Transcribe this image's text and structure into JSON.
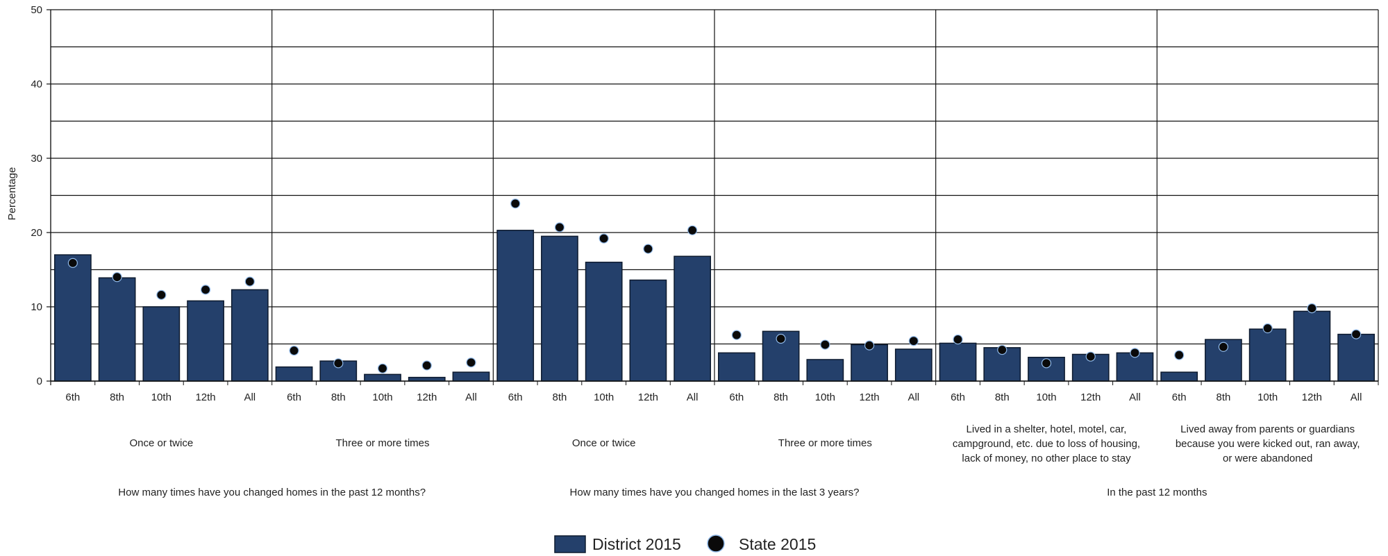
{
  "chart_data": {
    "type": "bar",
    "ylabel": "Percentage",
    "ylim": [
      0,
      50
    ],
    "yticks": [
      "0",
      "10",
      "20",
      "30",
      "40",
      "50"
    ],
    "grid": true,
    "legend_position": "bottom-center",
    "colors": {
      "bar": "#24406b",
      "bar_stroke": "#0d1a2e",
      "dot": "#0a0a0a",
      "dot_stroke": "#8fb8e8",
      "grid": "#111111"
    },
    "categories": [
      "6th",
      "8th",
      "10th",
      "12th",
      "All"
    ],
    "series": [
      {
        "name": "District 2015",
        "kind": "bar"
      },
      {
        "name": "State 2015",
        "kind": "dot"
      }
    ],
    "groups": [
      {
        "label": [
          "Once or twice"
        ],
        "district": [
          17.0,
          13.9,
          10.0,
          10.8,
          12.3
        ],
        "state": [
          15.9,
          14.0,
          11.6,
          12.3,
          13.4
        ]
      },
      {
        "label": [
          "Three or more times"
        ],
        "district": [
          1.9,
          2.7,
          0.9,
          0.5,
          1.2
        ],
        "state": [
          4.1,
          2.4,
          1.7,
          2.1,
          2.5
        ]
      },
      {
        "label": [
          "Once or twice"
        ],
        "district": [
          20.3,
          19.5,
          16.0,
          13.6,
          16.8
        ],
        "state": [
          23.9,
          20.7,
          19.2,
          17.8,
          20.3
        ]
      },
      {
        "label": [
          "Three or more times"
        ],
        "district": [
          3.8,
          6.7,
          2.9,
          4.9,
          4.3
        ],
        "state": [
          6.2,
          5.7,
          4.9,
          4.8,
          5.4
        ]
      },
      {
        "label": [
          "Lived in a shelter, hotel, motel, car,",
          "campground, etc. due to loss of housing,",
          "lack of money, no other place to stay"
        ],
        "district": [
          5.1,
          4.5,
          3.2,
          3.6,
          3.8
        ],
        "state": [
          5.6,
          4.2,
          2.4,
          3.3,
          3.8
        ]
      },
      {
        "label": [
          "Lived away from parents or guardians",
          "because you were kicked out, ran away,",
          "or were abandoned"
        ],
        "district": [
          1.2,
          5.6,
          7.0,
          9.4,
          6.3
        ],
        "state": [
          3.5,
          4.6,
          7.1,
          9.8,
          6.3
        ]
      }
    ],
    "questions": [
      {
        "label": "How many times have you changed homes in the past 12 months?",
        "groups": [
          0,
          1
        ]
      },
      {
        "label": "How many times have you changed homes in the last 3 years?",
        "groups": [
          2,
          3
        ]
      },
      {
        "label": "In the past 12 months",
        "groups": [
          4,
          5
        ]
      }
    ]
  }
}
